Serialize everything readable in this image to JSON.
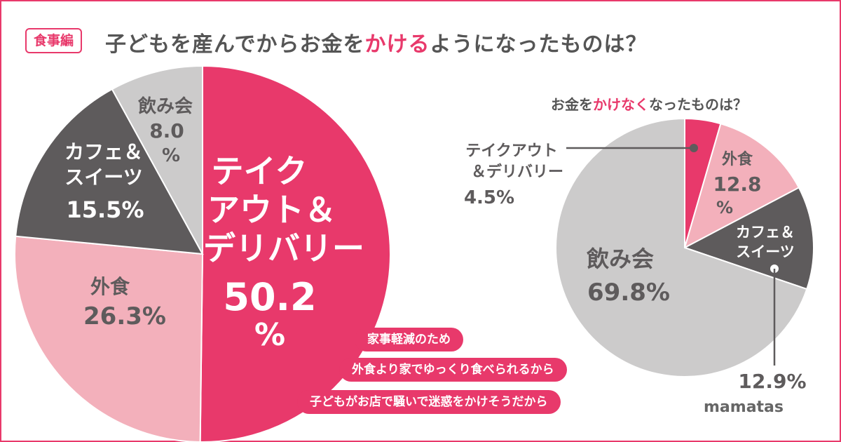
{
  "header": {
    "badge": "食事編",
    "title_pre": "子どもを産んでからお金を",
    "title_hl": "かける",
    "title_post": "ようになったものは？"
  },
  "colors": {
    "pink": "#e8396b",
    "light_pink": "#f3b0bb",
    "dark_gray": "#5e5b5c",
    "light_gray": "#cccbcb"
  },
  "chart_data": [
    {
      "type": "pie",
      "title": "子どもを産んでからお金をかけるようになったものは？",
      "slices": [
        {
          "label": "テイクアウト＆デリバリー",
          "value": 50.2,
          "color": "#e8396b"
        },
        {
          "label": "外食",
          "value": 26.3,
          "color": "#f3b0bb"
        },
        {
          "label": "カフェ＆スイーツ",
          "value": 15.5,
          "color": "#5e5b5c"
        },
        {
          "label": "飲み会",
          "value": 8.0,
          "color": "#cccbcb"
        }
      ],
      "display": {
        "takeout": {
          "l1": "テイク",
          "l2": "アウト＆",
          "l3": "デリバリー",
          "pct": "50.2",
          "pct_sign": "%"
        },
        "eat_out": {
          "label": "外食",
          "pct": "26.3%"
        },
        "cafe": {
          "l1": "カフェ＆",
          "l2": "スイーツ",
          "pct": "15.5%"
        },
        "drinks": {
          "label": "飲み会",
          "pct": "8.0",
          "pct_sign": "%"
        }
      },
      "reasons": [
        "家事軽減のため",
        "外食より家でゆっくり食べられるから",
        "子どもがお店で騒いで迷惑をかけそうだから"
      ]
    },
    {
      "type": "pie",
      "title": "お金をかけなくなったものは？",
      "title_pre": "お金を",
      "title_hl": "かけなく",
      "title_post": "なったものは？",
      "slices": [
        {
          "label": "テイクアウト＆デリバリー",
          "value": 4.5,
          "color": "#e8396b"
        },
        {
          "label": "外食",
          "value": 12.8,
          "color": "#f3b0bb"
        },
        {
          "label": "カフェ＆スイーツ",
          "value": 12.9,
          "color": "#5e5b5c"
        },
        {
          "label": "飲み会",
          "value": 69.8,
          "color": "#cccbcb"
        }
      ],
      "display": {
        "takeout": {
          "l1": "テイクアウト",
          "l2": "＆デリバリー",
          "pct": "4.5%"
        },
        "eat_out": {
          "label": "外食",
          "pct": "12.8",
          "pct_sign": "%"
        },
        "cafe": {
          "l1": "カフェ＆",
          "l2": "スイーツ",
          "pct": "12.9%"
        },
        "drinks": {
          "label": "飲み会",
          "pct": "69.8%"
        }
      }
    }
  ],
  "logo": "mamatas"
}
